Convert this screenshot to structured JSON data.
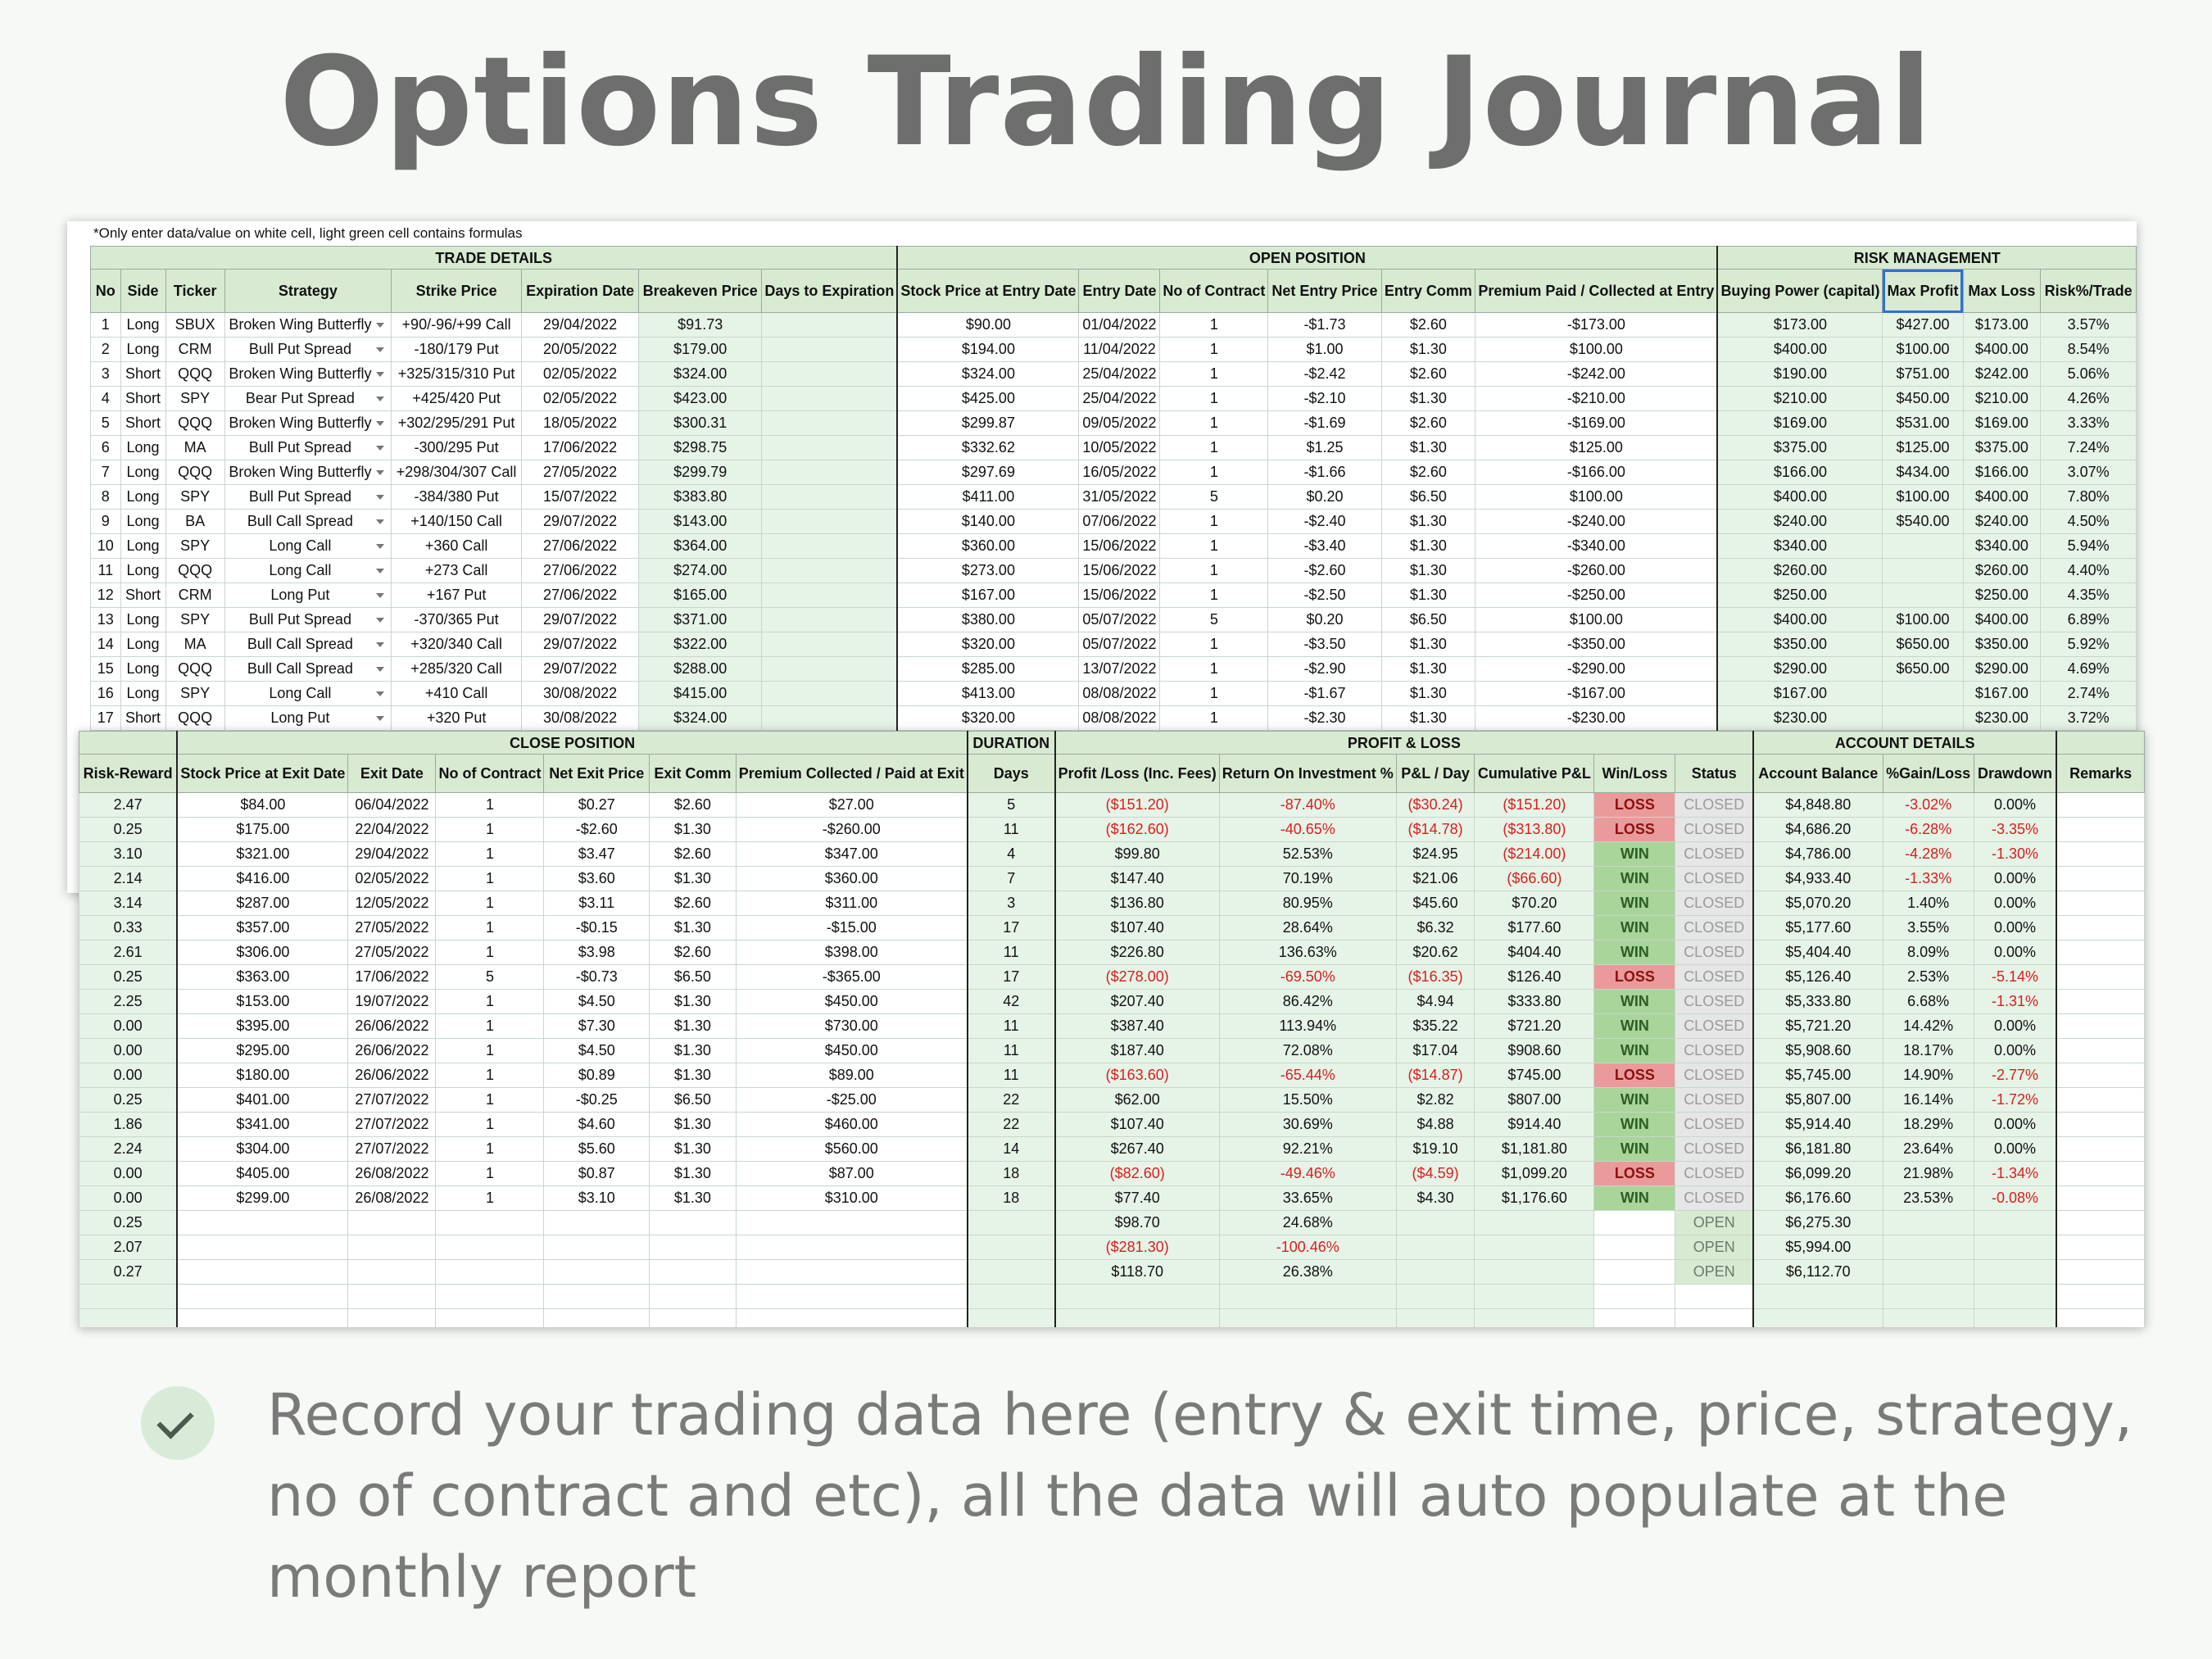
{
  "title": "Options Trading Journal",
  "note": "*Only enter data/value on white cell, light green cell contains formulas",
  "caption": "Record your trading data here (entry & exit time, price, strategy, no of contract and etc), all the data will auto populate at the monthly report",
  "colors": {
    "header_bg": "#d9ead3",
    "formula_bg": "#e6f3e7",
    "win_bg": "#a9d49a",
    "loss_bg": "#ea9a9a",
    "negative": "#d61f1f"
  },
  "icons": {
    "bullet": "check-icon",
    "dropdown": "chevron-down-icon"
  },
  "top": {
    "groups": {
      "trade_details": "TRADE DETAILS",
      "open_position": "OPEN POSITION",
      "risk_management": "RISK MANAGEMENT"
    },
    "headers": [
      "No",
      "Side",
      "Ticker",
      "Strategy",
      "Strike Price",
      "Expiration Date",
      "Breakeven Price",
      "Days to Expiration",
      "Stock Price at Entry Date",
      "Entry Date",
      "No of Contract",
      "Net Entry Price",
      "Entry Comm",
      "Premium Paid / Collected at Entry",
      "Buying Power (capital)",
      "Max Profit",
      "Max Loss",
      "Risk%/Trade"
    ],
    "rows": [
      [
        "1",
        "Long",
        "SBUX",
        "Broken Wing Butterfly",
        "+90/-96/+99 Call",
        "29/04/2022",
        "$91.73",
        "",
        "$90.00",
        "01/04/2022",
        "1",
        "-$1.73",
        "$2.60",
        "-$173.00",
        "$173.00",
        "$427.00",
        "$173.00",
        "3.57%"
      ],
      [
        "2",
        "Long",
        "CRM",
        "Bull Put Spread",
        "-180/179 Put",
        "20/05/2022",
        "$179.00",
        "",
        "$194.00",
        "11/04/2022",
        "1",
        "$1.00",
        "$1.30",
        "$100.00",
        "$400.00",
        "$100.00",
        "$400.00",
        "8.54%"
      ],
      [
        "3",
        "Short",
        "QQQ",
        "Broken Wing Butterfly",
        "+325/315/310 Put",
        "02/05/2022",
        "$324.00",
        "",
        "$324.00",
        "25/04/2022",
        "1",
        "-$2.42",
        "$2.60",
        "-$242.00",
        "$190.00",
        "$751.00",
        "$242.00",
        "5.06%"
      ],
      [
        "4",
        "Short",
        "SPY",
        "Bear Put Spread",
        "+425/420 Put",
        "02/05/2022",
        "$423.00",
        "",
        "$425.00",
        "25/04/2022",
        "1",
        "-$2.10",
        "$1.30",
        "-$210.00",
        "$210.00",
        "$450.00",
        "$210.00",
        "4.26%"
      ],
      [
        "5",
        "Short",
        "QQQ",
        "Broken Wing Butterfly",
        "+302/295/291 Put",
        "18/05/2022",
        "$300.31",
        "",
        "$299.87",
        "09/05/2022",
        "1",
        "-$1.69",
        "$2.60",
        "-$169.00",
        "$169.00",
        "$531.00",
        "$169.00",
        "3.33%"
      ],
      [
        "6",
        "Long",
        "MA",
        "Bull Put Spread",
        "-300/295 Put",
        "17/06/2022",
        "$298.75",
        "",
        "$332.62",
        "10/05/2022",
        "1",
        "$1.25",
        "$1.30",
        "$125.00",
        "$375.00",
        "$125.00",
        "$375.00",
        "7.24%"
      ],
      [
        "7",
        "Long",
        "QQQ",
        "Broken Wing Butterfly",
        "+298/304/307 Call",
        "27/05/2022",
        "$299.79",
        "",
        "$297.69",
        "16/05/2022",
        "1",
        "-$1.66",
        "$2.60",
        "-$166.00",
        "$166.00",
        "$434.00",
        "$166.00",
        "3.07%"
      ],
      [
        "8",
        "Long",
        "SPY",
        "Bull Put Spread",
        "-384/380 Put",
        "15/07/2022",
        "$383.80",
        "",
        "$411.00",
        "31/05/2022",
        "5",
        "$0.20",
        "$6.50",
        "$100.00",
        "$400.00",
        "$100.00",
        "$400.00",
        "7.80%"
      ],
      [
        "9",
        "Long",
        "BA",
        "Bull Call Spread",
        "+140/150 Call",
        "29/07/2022",
        "$143.00",
        "",
        "$140.00",
        "07/06/2022",
        "1",
        "-$2.40",
        "$1.30",
        "-$240.00",
        "$240.00",
        "$540.00",
        "$240.00",
        "4.50%"
      ],
      [
        "10",
        "Long",
        "SPY",
        "Long Call",
        "+360 Call",
        "27/06/2022",
        "$364.00",
        "",
        "$360.00",
        "15/06/2022",
        "1",
        "-$3.40",
        "$1.30",
        "-$340.00",
        "$340.00",
        "",
        "$340.00",
        "5.94%"
      ],
      [
        "11",
        "Long",
        "QQQ",
        "Long Call",
        "+273 Call",
        "27/06/2022",
        "$274.00",
        "",
        "$273.00",
        "15/06/2022",
        "1",
        "-$2.60",
        "$1.30",
        "-$260.00",
        "$260.00",
        "",
        "$260.00",
        "4.40%"
      ],
      [
        "12",
        "Short",
        "CRM",
        "Long Put",
        "+167 Put",
        "27/06/2022",
        "$165.00",
        "",
        "$167.00",
        "15/06/2022",
        "1",
        "-$2.50",
        "$1.30",
        "-$250.00",
        "$250.00",
        "",
        "$250.00",
        "4.35%"
      ],
      [
        "13",
        "Long",
        "SPY",
        "Bull Put Spread",
        "-370/365 Put",
        "29/07/2022",
        "$371.00",
        "",
        "$380.00",
        "05/07/2022",
        "5",
        "$0.20",
        "$6.50",
        "$100.00",
        "$400.00",
        "$100.00",
        "$400.00",
        "6.89%"
      ],
      [
        "14",
        "Long",
        "MA",
        "Bull Call Spread",
        "+320/340 Call",
        "29/07/2022",
        "$322.00",
        "",
        "$320.00",
        "05/07/2022",
        "1",
        "-$3.50",
        "$1.30",
        "-$350.00",
        "$350.00",
        "$650.00",
        "$350.00",
        "5.92%"
      ],
      [
        "15",
        "Long",
        "QQQ",
        "Bull Call Spread",
        "+285/320 Call",
        "29/07/2022",
        "$288.00",
        "",
        "$285.00",
        "13/07/2022",
        "1",
        "-$2.90",
        "$1.30",
        "-$290.00",
        "$290.00",
        "$650.00",
        "$290.00",
        "4.69%"
      ],
      [
        "16",
        "Long",
        "SPY",
        "Long Call",
        "+410 Call",
        "30/08/2022",
        "$415.00",
        "",
        "$413.00",
        "08/08/2022",
        "1",
        "-$1.67",
        "$1.30",
        "-$167.00",
        "$167.00",
        "",
        "$167.00",
        "2.74%"
      ],
      [
        "17",
        "Short",
        "QQQ",
        "Long Put",
        "+320 Put",
        "30/08/2022",
        "$324.00",
        "",
        "$320.00",
        "08/08/2022",
        "1",
        "-$2.30",
        "$1.30",
        "-$230.00",
        "$230.00",
        "",
        "$230.00",
        "3.72%"
      ]
    ]
  },
  "bottom": {
    "groups": {
      "close_position": "CLOSE POSITION",
      "duration": "DURATION",
      "profit_loss": "PROFIT & LOSS",
      "account_details": "ACCOUNT DETAILS"
    },
    "headers": [
      "Risk-Reward",
      "Stock Price at Exit Date",
      "Exit Date",
      "No of Contract",
      "Net Exit Price",
      "Exit Comm",
      "Premium Collected / Paid at Exit",
      "Days",
      "Profit /Loss (Inc. Fees)",
      "Return On Investment %",
      "P&L / Day",
      "Cumulative P&L",
      "Win/Loss",
      "Status",
      "Account Balance",
      "%Gain/Loss",
      "Drawdown",
      "Remarks"
    ],
    "rows": [
      [
        "2.47",
        "$84.00",
        "06/04/2022",
        "1",
        "$0.27",
        "$2.60",
        "$27.00",
        "5",
        "($151.20)",
        "-87.40%",
        "($30.24)",
        "($151.20)",
        "LOSS",
        "CLOSED",
        "$4,848.80",
        "-3.02%",
        "0.00%",
        ""
      ],
      [
        "0.25",
        "$175.00",
        "22/04/2022",
        "1",
        "-$2.60",
        "$1.30",
        "-$260.00",
        "11",
        "($162.60)",
        "-40.65%",
        "($14.78)",
        "($313.80)",
        "LOSS",
        "CLOSED",
        "$4,686.20",
        "-6.28%",
        "-3.35%",
        ""
      ],
      [
        "3.10",
        "$321.00",
        "29/04/2022",
        "1",
        "$3.47",
        "$2.60",
        "$347.00",
        "4",
        "$99.80",
        "52.53%",
        "$24.95",
        "($214.00)",
        "WIN",
        "CLOSED",
        "$4,786.00",
        "-4.28%",
        "-1.30%",
        ""
      ],
      [
        "2.14",
        "$416.00",
        "02/05/2022",
        "1",
        "$3.60",
        "$1.30",
        "$360.00",
        "7",
        "$147.40",
        "70.19%",
        "$21.06",
        "($66.60)",
        "WIN",
        "CLOSED",
        "$4,933.40",
        "-1.33%",
        "0.00%",
        ""
      ],
      [
        "3.14",
        "$287.00",
        "12/05/2022",
        "1",
        "$3.11",
        "$2.60",
        "$311.00",
        "3",
        "$136.80",
        "80.95%",
        "$45.60",
        "$70.20",
        "WIN",
        "CLOSED",
        "$5,070.20",
        "1.40%",
        "0.00%",
        ""
      ],
      [
        "0.33",
        "$357.00",
        "27/05/2022",
        "1",
        "-$0.15",
        "$1.30",
        "-$15.00",
        "17",
        "$107.40",
        "28.64%",
        "$6.32",
        "$177.60",
        "WIN",
        "CLOSED",
        "$5,177.60",
        "3.55%",
        "0.00%",
        ""
      ],
      [
        "2.61",
        "$306.00",
        "27/05/2022",
        "1",
        "$3.98",
        "$2.60",
        "$398.00",
        "11",
        "$226.80",
        "136.63%",
        "$20.62",
        "$404.40",
        "WIN",
        "CLOSED",
        "$5,404.40",
        "8.09%",
        "0.00%",
        ""
      ],
      [
        "0.25",
        "$363.00",
        "17/06/2022",
        "5",
        "-$0.73",
        "$6.50",
        "-$365.00",
        "17",
        "($278.00)",
        "-69.50%",
        "($16.35)",
        "$126.40",
        "LOSS",
        "CLOSED",
        "$5,126.40",
        "2.53%",
        "-5.14%",
        ""
      ],
      [
        "2.25",
        "$153.00",
        "19/07/2022",
        "1",
        "$4.50",
        "$1.30",
        "$450.00",
        "42",
        "$207.40",
        "86.42%",
        "$4.94",
        "$333.80",
        "WIN",
        "CLOSED",
        "$5,333.80",
        "6.68%",
        "-1.31%",
        ""
      ],
      [
        "0.00",
        "$395.00",
        "26/06/2022",
        "1",
        "$7.30",
        "$1.30",
        "$730.00",
        "11",
        "$387.40",
        "113.94%",
        "$35.22",
        "$721.20",
        "WIN",
        "CLOSED",
        "$5,721.20",
        "14.42%",
        "0.00%",
        ""
      ],
      [
        "0.00",
        "$295.00",
        "26/06/2022",
        "1",
        "$4.50",
        "$1.30",
        "$450.00",
        "11",
        "$187.40",
        "72.08%",
        "$17.04",
        "$908.60",
        "WIN",
        "CLOSED",
        "$5,908.60",
        "18.17%",
        "0.00%",
        ""
      ],
      [
        "0.00",
        "$180.00",
        "26/06/2022",
        "1",
        "$0.89",
        "$1.30",
        "$89.00",
        "11",
        "($163.60)",
        "-65.44%",
        "($14.87)",
        "$745.00",
        "LOSS",
        "CLOSED",
        "$5,745.00",
        "14.90%",
        "-2.77%",
        ""
      ],
      [
        "0.25",
        "$401.00",
        "27/07/2022",
        "1",
        "-$0.25",
        "$6.50",
        "-$25.00",
        "22",
        "$62.00",
        "15.50%",
        "$2.82",
        "$807.00",
        "WIN",
        "CLOSED",
        "$5,807.00",
        "16.14%",
        "-1.72%",
        ""
      ],
      [
        "1.86",
        "$341.00",
        "27/07/2022",
        "1",
        "$4.60",
        "$1.30",
        "$460.00",
        "22",
        "$107.40",
        "30.69%",
        "$4.88",
        "$914.40",
        "WIN",
        "CLOSED",
        "$5,914.40",
        "18.29%",
        "0.00%",
        ""
      ],
      [
        "2.24",
        "$304.00",
        "27/07/2022",
        "1",
        "$5.60",
        "$1.30",
        "$560.00",
        "14",
        "$267.40",
        "92.21%",
        "$19.10",
        "$1,181.80",
        "WIN",
        "CLOSED",
        "$6,181.80",
        "23.64%",
        "0.00%",
        ""
      ],
      [
        "0.00",
        "$405.00",
        "26/08/2022",
        "1",
        "$0.87",
        "$1.30",
        "$87.00",
        "18",
        "($82.60)",
        "-49.46%",
        "($4.59)",
        "$1,099.20",
        "LOSS",
        "CLOSED",
        "$6,099.20",
        "21.98%",
        "-1.34%",
        ""
      ],
      [
        "0.00",
        "$299.00",
        "26/08/2022",
        "1",
        "$3.10",
        "$1.30",
        "$310.00",
        "18",
        "$77.40",
        "33.65%",
        "$4.30",
        "$1,176.60",
        "WIN",
        "CLOSED",
        "$6,176.60",
        "23.53%",
        "-0.08%",
        ""
      ],
      [
        "0.25",
        "",
        "",
        "",
        "",
        "",
        "",
        "",
        "$98.70",
        "24.68%",
        "",
        "",
        "",
        "OPEN",
        "$6,275.30",
        "",
        ""
      ],
      [
        "2.07",
        "",
        "",
        "",
        "",
        "",
        "",
        "",
        "($281.30)",
        "-100.46%",
        "",
        "",
        "",
        "OPEN",
        "$5,994.00",
        "",
        ""
      ],
      [
        "0.27",
        "",
        "",
        "",
        "",
        "",
        "",
        "",
        "$118.70",
        "26.38%",
        "",
        "",
        "",
        "OPEN",
        "$6,112.70",
        "",
        ""
      ],
      [
        "",
        "",
        "",
        "",
        "",
        "",
        "",
        "",
        "",
        "",
        "",
        "",
        "",
        "",
        "",
        "",
        "",
        ""
      ],
      [
        "",
        "",
        "",
        "",
        "",
        "",
        "",
        "",
        "",
        "",
        "",
        "",
        "",
        "",
        "",
        "",
        "",
        ""
      ]
    ]
  }
}
